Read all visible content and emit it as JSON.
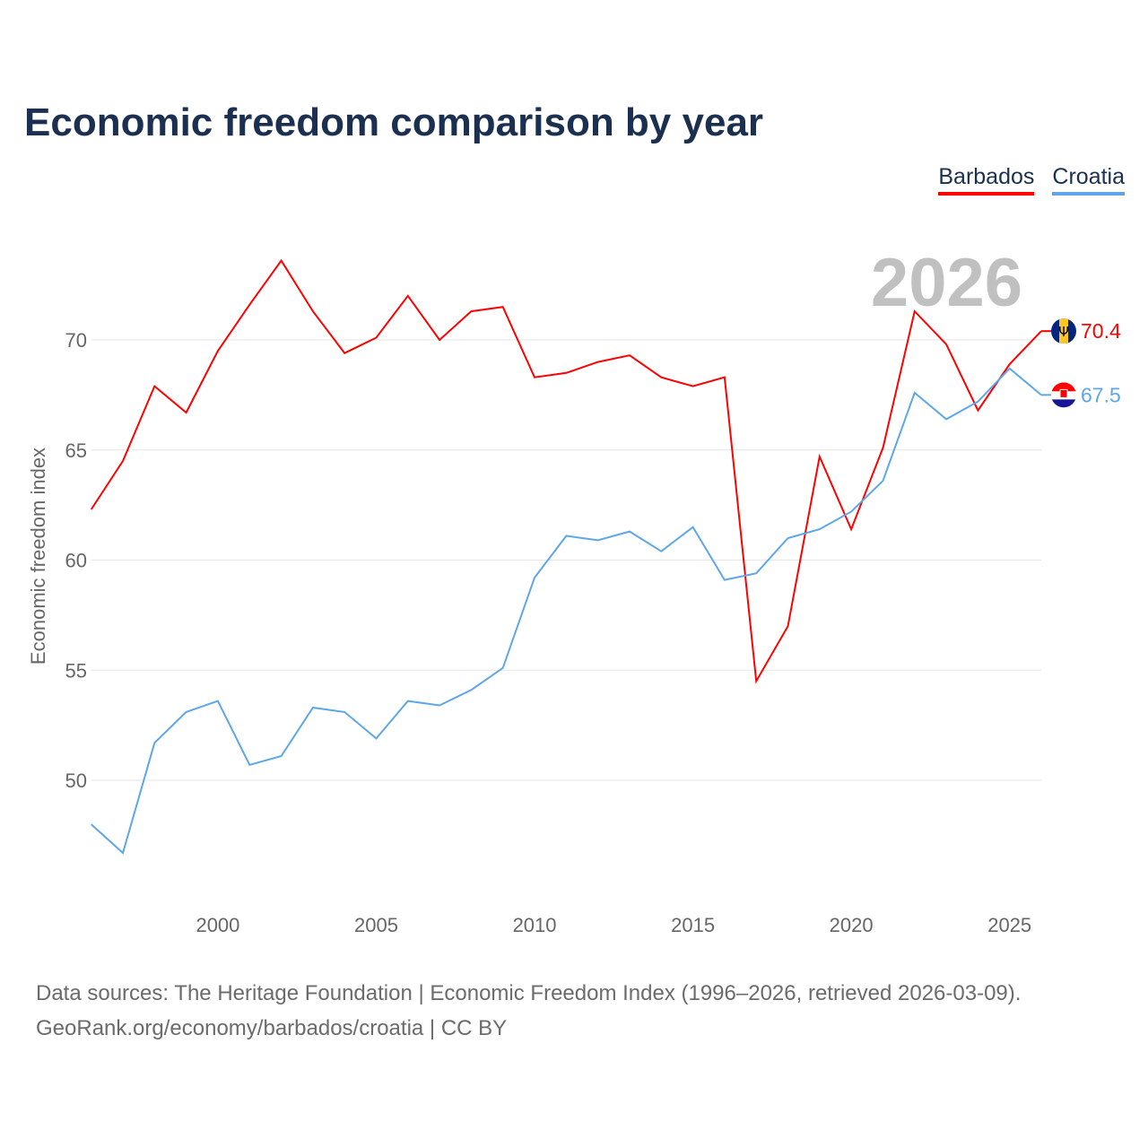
{
  "title": "Economic freedom comparison by year",
  "source_lines": [
    "Data sources: The Heritage Foundation | Economic Freedom Index (1996–2026, retrieved 2026-03-09).",
    "GeoRank.org/economy/barbados/croatia | CC BY"
  ],
  "chart_data": {
    "type": "line",
    "title": "Economic freedom comparison by year",
    "xlabel": "",
    "ylabel": "Economic freedom index",
    "watermark_year": "2026",
    "x": [
      1996,
      1997,
      1998,
      1999,
      2000,
      2001,
      2002,
      2003,
      2004,
      2005,
      2006,
      2007,
      2008,
      2009,
      2010,
      2011,
      2012,
      2013,
      2014,
      2015,
      2016,
      2017,
      2018,
      2019,
      2020,
      2021,
      2022,
      2023,
      2024,
      2025,
      2026
    ],
    "xlim": [
      1996,
      2026
    ],
    "ylim": [
      44.7,
      74.8
    ],
    "xticks": [
      2000,
      2005,
      2010,
      2015,
      2020,
      2025
    ],
    "yticks": [
      50,
      55,
      60,
      65,
      70
    ],
    "grid": true,
    "legend_position": "top-right",
    "series": [
      {
        "name": "Barbados",
        "color": "#ff0000",
        "end_label": "70.4",
        "values": [
          62.3,
          64.5,
          67.9,
          66.7,
          69.5,
          71.6,
          73.6,
          71.3,
          69.4,
          70.1,
          72.0,
          70.0,
          71.3,
          71.5,
          68.3,
          68.5,
          69.0,
          69.3,
          68.3,
          67.9,
          68.3,
          54.5,
          57.0,
          64.7,
          61.4,
          65.1,
          71.3,
          69.8,
          66.8,
          68.9,
          70.4
        ]
      },
      {
        "name": "Croatia",
        "color": "#5ea6ea",
        "end_label": "67.5",
        "values": [
          48.0,
          46.7,
          51.7,
          53.1,
          53.6,
          50.7,
          51.1,
          53.3,
          53.1,
          51.9,
          53.6,
          53.4,
          54.1,
          55.1,
          59.2,
          61.1,
          60.9,
          61.3,
          60.4,
          61.5,
          59.1,
          59.4,
          61.0,
          61.4,
          62.2,
          63.6,
          67.6,
          66.4,
          67.2,
          68.7,
          67.5
        ]
      }
    ]
  }
}
